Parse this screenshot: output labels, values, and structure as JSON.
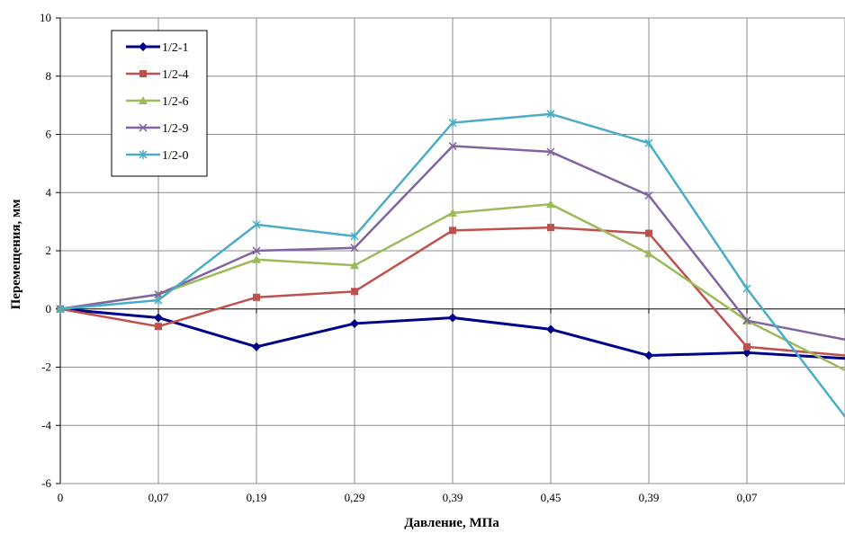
{
  "chart_data": {
    "type": "line",
    "title": "",
    "xlabel": "Давление, МПа",
    "ylabel": "Перемещения, мм",
    "categories": [
      "0",
      "0,07",
      "0,19",
      "0,29",
      "0,39",
      "0,45",
      "0,39",
      "0,07",
      ""
    ],
    "ylim": [
      -6,
      10
    ],
    "yticks": [
      -6,
      -4,
      -2,
      0,
      2,
      4,
      6,
      8,
      10
    ],
    "grid": true,
    "legend_position": "top-left",
    "series": [
      {
        "name": "1/2-1",
        "color": "#00008B",
        "marker": "diamond",
        "values": [
          0,
          -0.3,
          -1.3,
          -0.5,
          -0.3,
          -0.7,
          -1.6,
          -1.5,
          -1.7
        ]
      },
      {
        "name": "1/2-4",
        "color": "#C0504D",
        "marker": "square",
        "values": [
          0,
          -0.6,
          0.4,
          0.6,
          2.7,
          2.8,
          2.6,
          -1.3,
          -1.6
        ]
      },
      {
        "name": "1/2-6",
        "color": "#9BBB59",
        "marker": "triangle",
        "values": [
          0,
          0.5,
          1.7,
          1.5,
          3.3,
          3.6,
          1.9,
          -0.4,
          -2.1
        ]
      },
      {
        "name": "1/2-9",
        "color": "#8064A2",
        "marker": "x",
        "values": [
          0,
          0.5,
          2.0,
          2.1,
          5.6,
          5.4,
          3.9,
          -0.4,
          -1.05
        ]
      },
      {
        "name": "1/2-0",
        "color": "#4BACC6",
        "marker": "star",
        "values": [
          0,
          0.3,
          2.9,
          2.5,
          6.4,
          6.7,
          5.7,
          0.7,
          -3.7
        ]
      }
    ]
  }
}
